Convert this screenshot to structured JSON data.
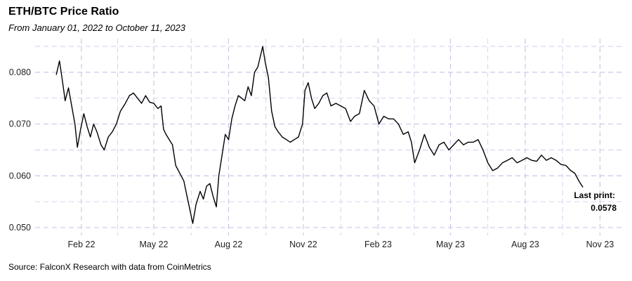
{
  "chart_data": {
    "type": "line",
    "title": "ETH/BTC Price Ratio",
    "subtitle": "From January 01, 2022 to October 11, 2023",
    "caption": "Source: FalconX Research with data from CoinMetrics",
    "xlabel": "",
    "ylabel": "",
    "ylim": [
      0.0485,
      0.0865
    ],
    "y_ticks": [
      "0.050",
      "0.060",
      "0.070",
      "0.080"
    ],
    "y_tick_values": [
      0.05,
      0.06,
      0.07,
      0.08
    ],
    "x_ticks": [
      "Feb 22",
      "May 22",
      "Aug 22",
      "Nov 22",
      "Feb 23",
      "May 23",
      "Aug 23",
      "Nov 23"
    ],
    "x_tick_dates": [
      "2022-02-01",
      "2022-05-01",
      "2022-08-01",
      "2022-11-01",
      "2023-02-01",
      "2023-05-01",
      "2023-08-01",
      "2023-11-01"
    ],
    "xlim": [
      "2021-12-06",
      "2023-11-30"
    ],
    "grid": true,
    "line_color": "#000000",
    "grid_color": "#c8c8ea",
    "annotation": {
      "label": "Last print:",
      "value": "0.0578"
    },
    "series": [
      {
        "x": [
          "2022-01-01",
          "2022-01-05",
          "2022-01-08",
          "2022-01-12",
          "2022-01-16",
          "2022-01-20",
          "2022-01-24",
          "2022-01-27",
          "2022-01-31",
          "2022-02-04",
          "2022-02-08",
          "2022-02-12",
          "2022-02-16",
          "2022-02-20",
          "2022-02-25",
          "2022-03-01",
          "2022-03-06",
          "2022-03-11",
          "2022-03-16",
          "2022-03-21",
          "2022-03-27",
          "2022-04-01",
          "2022-04-06",
          "2022-04-11",
          "2022-04-16",
          "2022-04-21",
          "2022-04-26",
          "2022-05-01",
          "2022-05-06",
          "2022-05-10",
          "2022-05-13",
          "2022-05-16",
          "2022-05-20",
          "2022-05-24",
          "2022-05-28",
          "2022-06-02",
          "2022-06-07",
          "2022-06-11",
          "2022-06-15",
          "2022-06-18",
          "2022-06-22",
          "2022-06-27",
          "2022-07-01",
          "2022-07-05",
          "2022-07-09",
          "2022-07-13",
          "2022-07-17",
          "2022-07-20",
          "2022-07-24",
          "2022-07-28",
          "2022-08-01",
          "2022-08-05",
          "2022-08-09",
          "2022-08-13",
          "2022-08-17",
          "2022-08-21",
          "2022-08-25",
          "2022-08-29",
          "2022-09-02",
          "2022-09-06",
          "2022-09-09",
          "2022-09-12",
          "2022-09-15",
          "2022-09-19",
          "2022-09-23",
          "2022-09-27",
          "2022-10-01",
          "2022-10-06",
          "2022-10-11",
          "2022-10-16",
          "2022-10-21",
          "2022-10-26",
          "2022-10-31",
          "2022-11-03",
          "2022-11-07",
          "2022-11-11",
          "2022-11-15",
          "2022-11-20",
          "2022-11-25",
          "2022-11-30",
          "2022-12-05",
          "2022-12-11",
          "2022-12-17",
          "2022-12-23",
          "2022-12-29",
          "2023-01-03",
          "2023-01-09",
          "2023-01-15",
          "2023-01-21",
          "2023-01-27",
          "2023-02-02",
          "2023-02-08",
          "2023-02-14",
          "2023-02-20",
          "2023-02-26",
          "2023-03-04",
          "2023-03-10",
          "2023-03-14",
          "2023-03-18",
          "2023-03-24",
          "2023-03-30",
          "2023-04-05",
          "2023-04-11",
          "2023-04-17",
          "2023-04-23",
          "2023-04-29",
          "2023-05-05",
          "2023-05-11",
          "2023-05-17",
          "2023-05-23",
          "2023-05-29",
          "2023-06-04",
          "2023-06-10",
          "2023-06-16",
          "2023-06-22",
          "2023-06-28",
          "2023-07-04",
          "2023-07-10",
          "2023-07-16",
          "2023-07-22",
          "2023-07-28",
          "2023-08-03",
          "2023-08-09",
          "2023-08-15",
          "2023-08-21",
          "2023-08-27",
          "2023-09-02",
          "2023-09-08",
          "2023-09-14",
          "2023-09-20",
          "2023-09-26",
          "2023-10-01",
          "2023-10-06",
          "2023-10-11"
        ],
        "y": [
          0.0795,
          0.0822,
          0.079,
          0.0745,
          0.077,
          0.0735,
          0.07,
          0.0655,
          0.069,
          0.072,
          0.0695,
          0.0675,
          0.07,
          0.0685,
          0.066,
          0.065,
          0.0675,
          0.0685,
          0.07,
          0.0725,
          0.074,
          0.0755,
          0.076,
          0.075,
          0.074,
          0.0755,
          0.0742,
          0.074,
          0.073,
          0.0735,
          0.069,
          0.068,
          0.067,
          0.066,
          0.062,
          0.0605,
          0.059,
          0.056,
          0.053,
          0.0508,
          0.0545,
          0.057,
          0.0555,
          0.058,
          0.0585,
          0.056,
          0.054,
          0.06,
          0.064,
          0.068,
          0.067,
          0.071,
          0.0735,
          0.0755,
          0.075,
          0.0745,
          0.0772,
          0.0755,
          0.08,
          0.081,
          0.083,
          0.085,
          0.082,
          0.079,
          0.0725,
          0.0695,
          0.0685,
          0.0675,
          0.067,
          0.0665,
          0.067,
          0.0675,
          0.07,
          0.0765,
          0.078,
          0.075,
          0.073,
          0.074,
          0.0755,
          0.076,
          0.0735,
          0.074,
          0.0735,
          0.073,
          0.0705,
          0.0715,
          0.072,
          0.0765,
          0.0745,
          0.0735,
          0.07,
          0.0715,
          0.071,
          0.071,
          0.07,
          0.068,
          0.0685,
          0.0665,
          0.0625,
          0.065,
          0.068,
          0.0655,
          0.064,
          0.066,
          0.0665,
          0.065,
          0.066,
          0.067,
          0.066,
          0.0665,
          0.0665,
          0.067,
          0.065,
          0.0625,
          0.061,
          0.0615,
          0.0625,
          0.063,
          0.0635,
          0.0625,
          0.063,
          0.0635,
          0.063,
          0.0628,
          0.064,
          0.063,
          0.0635,
          0.063,
          0.0622,
          0.062,
          0.061,
          0.0605,
          0.059,
          0.0578
        ]
      }
    ]
  }
}
